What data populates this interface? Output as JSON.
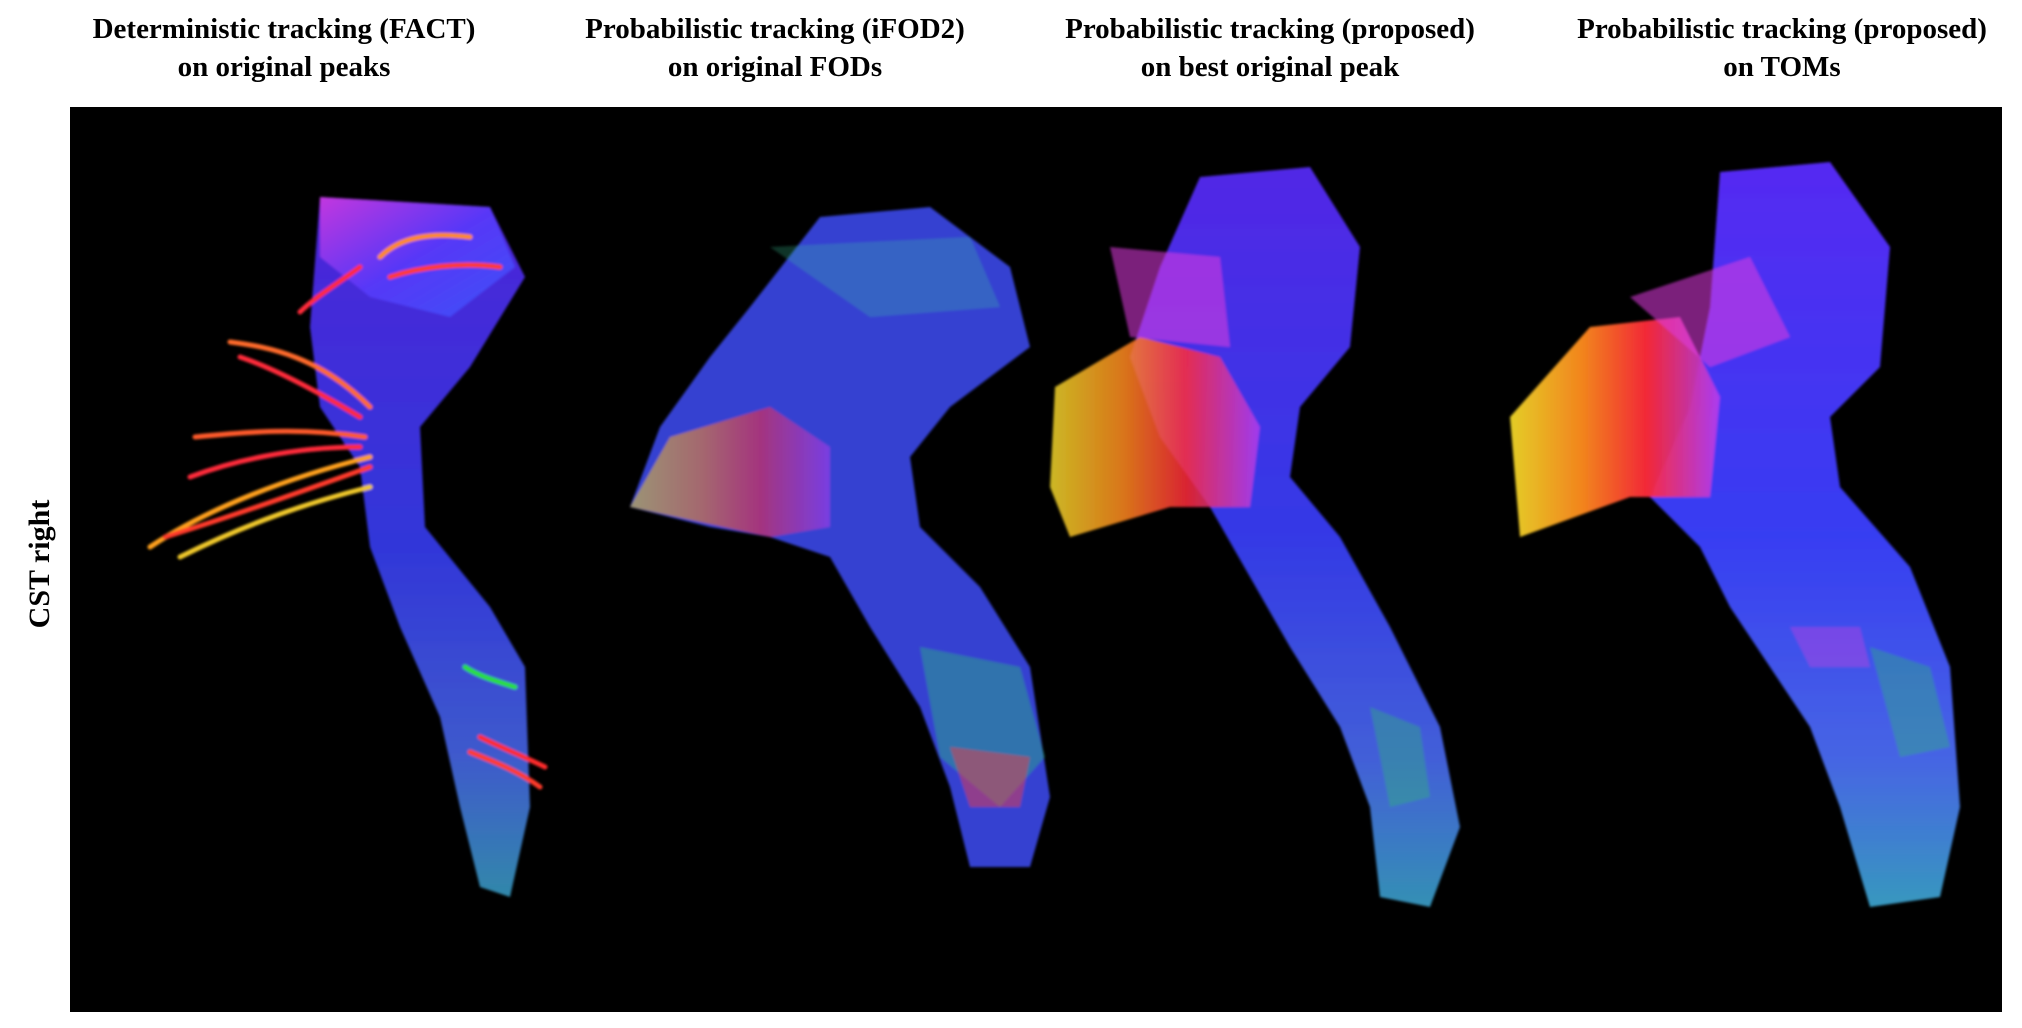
{
  "figure": {
    "columns": [
      {
        "title_line1": "Deterministic tracking (FACT)",
        "title_line2": "on original peaks"
      },
      {
        "title_line1": "Probabilistic tracking (iFOD2)",
        "title_line2": "on original FODs"
      },
      {
        "title_line1": "Probabilistic tracking (proposed)",
        "title_line2": "on best original peak"
      },
      {
        "title_line1": "Probabilistic tracking (proposed)",
        "title_line2": "on TOMs"
      }
    ],
    "row_label": "CST right",
    "panel_background": "#000000",
    "fiber_colors": {
      "left_right": "#ff2a2a",
      "anterior_posterior": "#2adf3a",
      "superior_inferior": "#2a3cff",
      "mixed_magenta": "#d23ce6",
      "mixed_orange": "#ff9a1e"
    }
  }
}
